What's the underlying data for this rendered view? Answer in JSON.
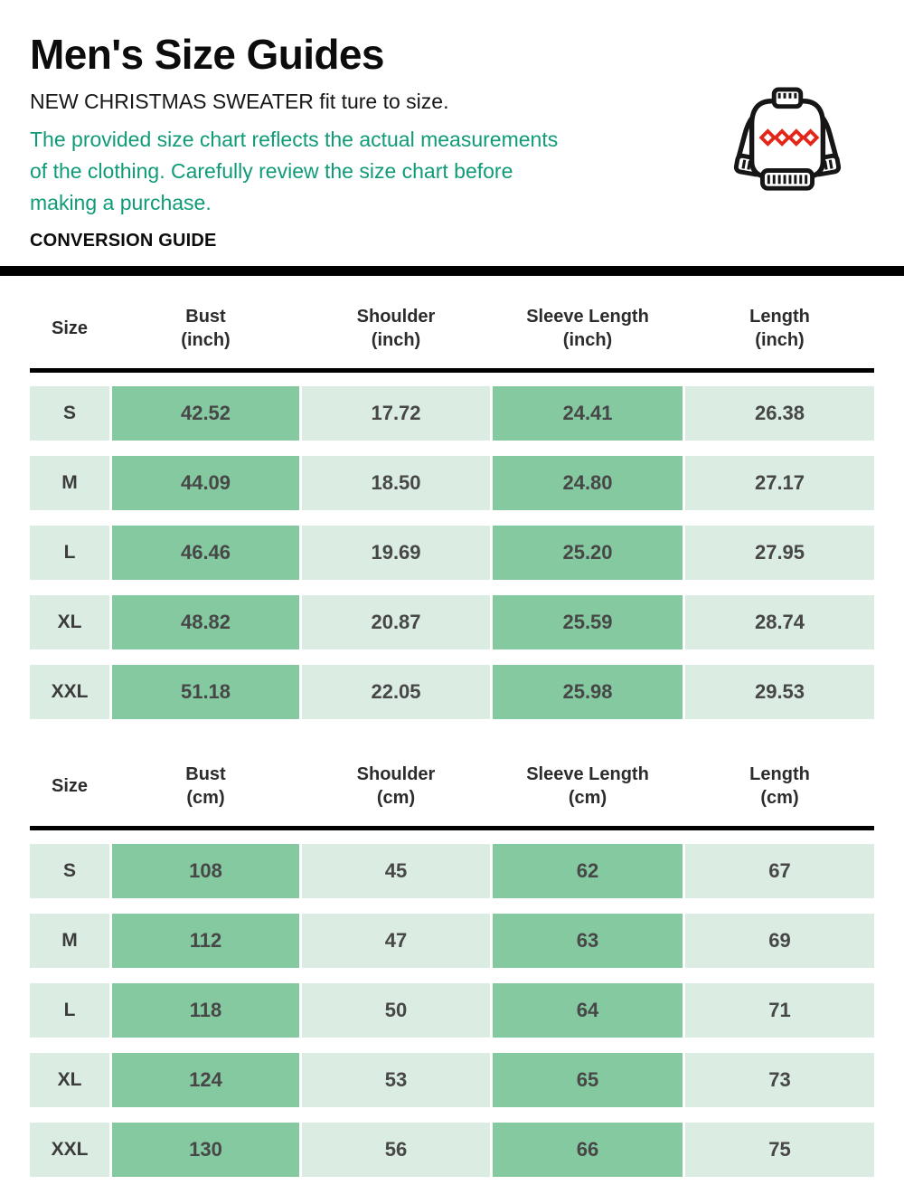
{
  "header": {
    "title": "Men's Size Guides",
    "subtitle": "NEW CHRISTMAS SWEATER fit ture to size.",
    "note_lines": [
      "The provided size chart reflects the actual measurements",
      "of the clothing. Carefully review the size chart before",
      "making a purchase."
    ],
    "section_label": "CONVERSION GUIDE"
  },
  "icon": {
    "name": "christmas-sweater-icon",
    "outline_color": "#161616",
    "pattern_color": "#e3261a"
  },
  "colors": {
    "note_green": "#0f9b78",
    "cell_dark": "#85c9a1",
    "cell_light": "#dbece2",
    "divider_black": "#000000"
  },
  "tables": [
    {
      "id": "inch",
      "columns": [
        {
          "label": "Size",
          "unit": ""
        },
        {
          "label": "Bust",
          "unit": "(inch)"
        },
        {
          "label": "Shoulder",
          "unit": "(inch)"
        },
        {
          "label": "Sleeve Length",
          "unit": "(inch)"
        },
        {
          "label": "Length",
          "unit": "(inch)"
        }
      ],
      "rows": [
        {
          "size": "S",
          "values": [
            "42.52",
            "17.72",
            "24.41",
            "26.38"
          ]
        },
        {
          "size": "M",
          "values": [
            "44.09",
            "18.50",
            "24.80",
            "27.17"
          ]
        },
        {
          "size": "L",
          "values": [
            "46.46",
            "19.69",
            "25.20",
            "27.95"
          ]
        },
        {
          "size": "XL",
          "values": [
            "48.82",
            "20.87",
            "25.59",
            "28.74"
          ]
        },
        {
          "size": "XXL",
          "values": [
            "51.18",
            "22.05",
            "25.98",
            "29.53"
          ]
        }
      ]
    },
    {
      "id": "cm",
      "columns": [
        {
          "label": "Size",
          "unit": ""
        },
        {
          "label": "Bust",
          "unit": "(cm)"
        },
        {
          "label": "Shoulder",
          "unit": "(cm)"
        },
        {
          "label": "Sleeve Length",
          "unit": "(cm)"
        },
        {
          "label": "Length",
          "unit": "(cm)"
        }
      ],
      "rows": [
        {
          "size": "S",
          "values": [
            "108",
            "45",
            "62",
            "67"
          ]
        },
        {
          "size": "M",
          "values": [
            "112",
            "47",
            "63",
            "69"
          ]
        },
        {
          "size": "L",
          "values": [
            "118",
            "50",
            "64",
            "71"
          ]
        },
        {
          "size": "XL",
          "values": [
            "124",
            "53",
            "65",
            "73"
          ]
        },
        {
          "size": "XXL",
          "values": [
            "130",
            "56",
            "66",
            "75"
          ]
        }
      ]
    }
  ]
}
